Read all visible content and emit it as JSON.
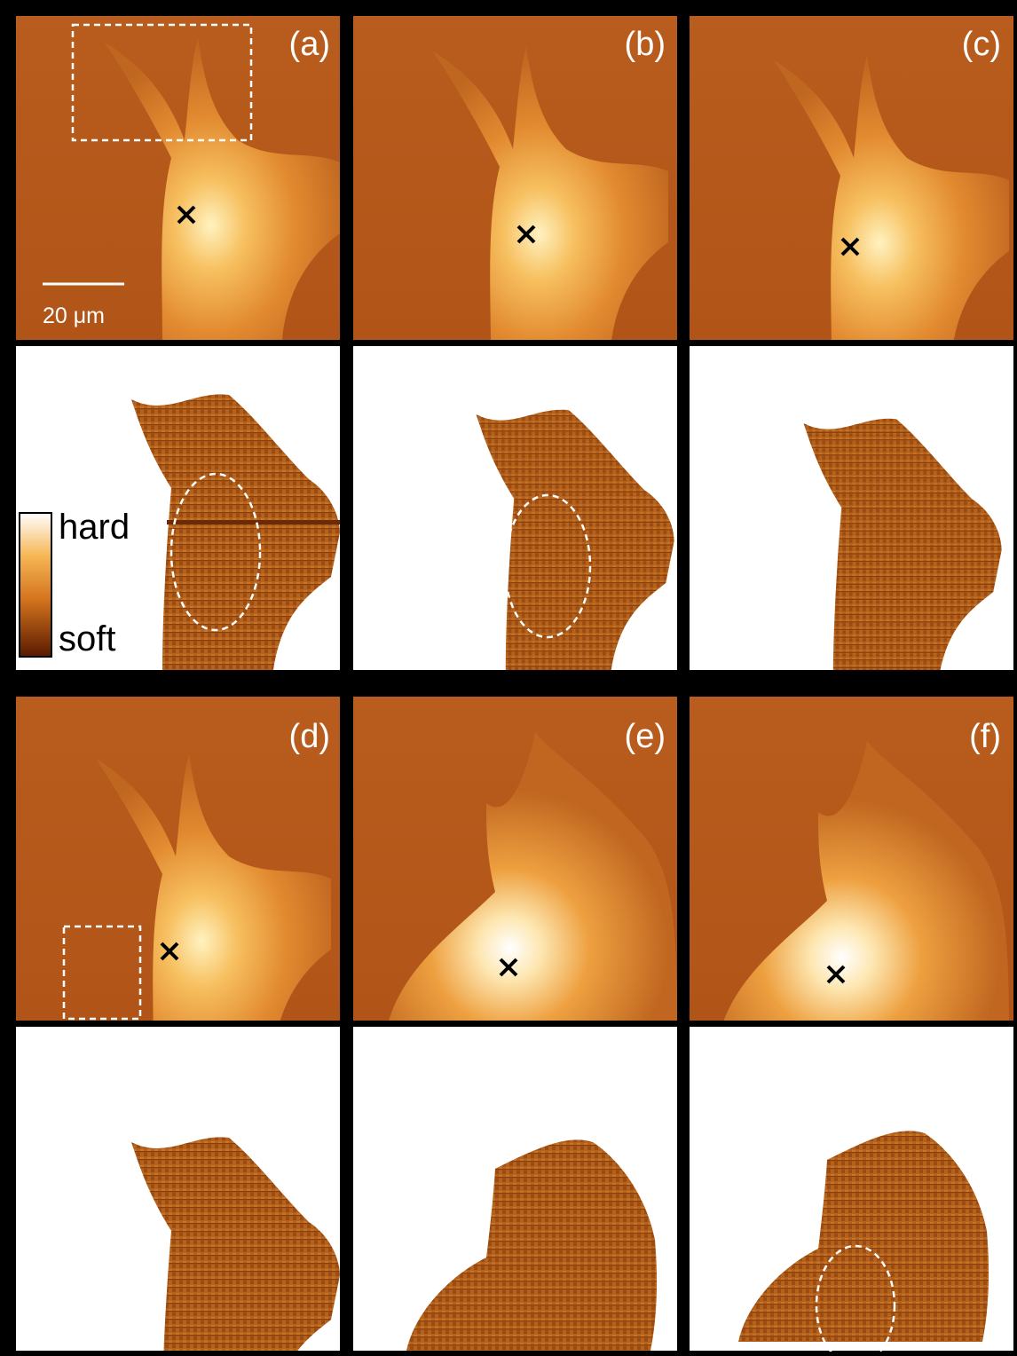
{
  "panels": [
    {
      "label": "(a)"
    },
    {
      "label": "(b)"
    },
    {
      "label": "(c)"
    },
    {
      "label": "(d)"
    },
    {
      "label": "(e)"
    },
    {
      "label": "(f)"
    }
  ],
  "scale_bar": "20 μm",
  "colorbar": {
    "high": "hard",
    "low": "soft"
  }
}
